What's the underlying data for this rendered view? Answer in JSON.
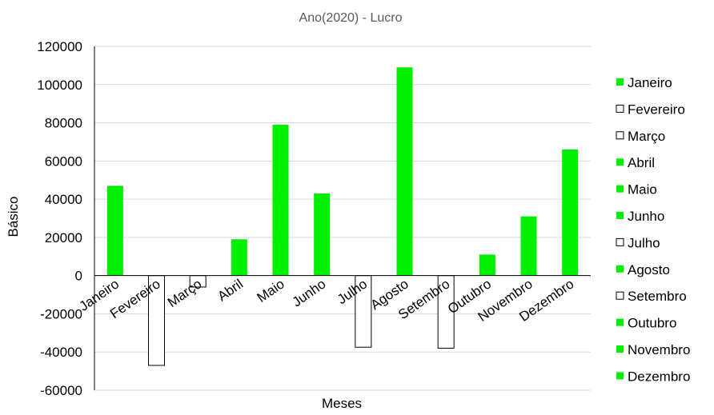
{
  "chart_data": {
    "type": "bar",
    "title": "Ano(2020) - Lucro",
    "xlabel": "Meses",
    "ylabel": "Básico",
    "ylim": [
      -60000,
      120000
    ],
    "yticks": [
      "120000",
      "100000",
      "80000",
      "60000",
      "40000",
      "20000",
      "0",
      "-20000",
      "-40000",
      "-60000"
    ],
    "grid": true,
    "legend_position": "right",
    "categories": [
      "Janeiro",
      "Fevereiro",
      "Março",
      "Abril",
      "Maio",
      "Junho",
      "Julho",
      "Agosto",
      "Setembro",
      "Outubro",
      "Novembro",
      "Dezembro"
    ],
    "values": [
      47000,
      -47000,
      -6000,
      19000,
      79000,
      43000,
      -37500,
      109000,
      -38000,
      11000,
      31000,
      66000
    ],
    "colors": {
      "positive_fill": "#00ee00",
      "negative_fill": "#ffffff",
      "negative_stroke": "#000000",
      "grid": "#d9d9d9",
      "axis": "#000000",
      "title": "#595959"
    }
  }
}
